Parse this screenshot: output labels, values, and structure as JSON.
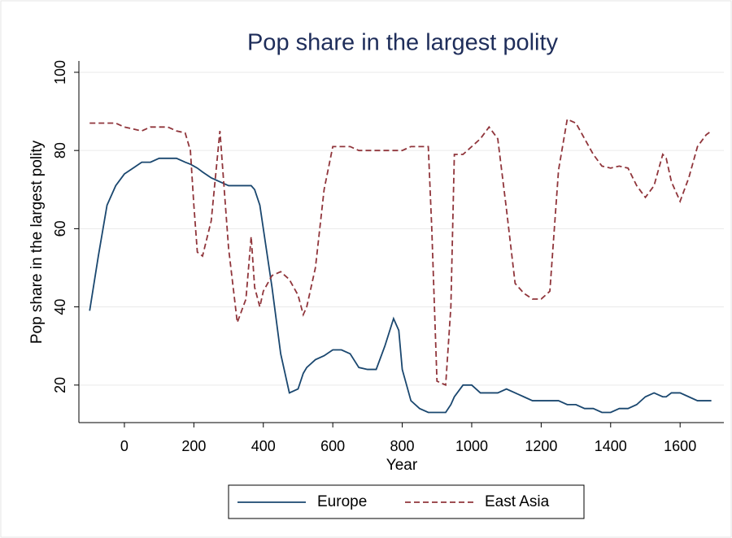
{
  "chart_data": {
    "type": "line",
    "title": "Pop share in the largest polity",
    "x_label": "Year",
    "y_label": "Pop share in the largest polity",
    "x": [
      -100,
      -75,
      -50,
      -25,
      0,
      25,
      50,
      75,
      100,
      125,
      150,
      175,
      190,
      200,
      210,
      225,
      250,
      275,
      300,
      325,
      350,
      365,
      375,
      390,
      400,
      425,
      450,
      475,
      500,
      515,
      525,
      550,
      575,
      600,
      625,
      650,
      675,
      700,
      725,
      750,
      775,
      790,
      800,
      825,
      850,
      875,
      885,
      900,
      925,
      940,
      950,
      975,
      1000,
      1025,
      1050,
      1075,
      1100,
      1125,
      1150,
      1175,
      1200,
      1225,
      1250,
      1275,
      1300,
      1325,
      1350,
      1375,
      1400,
      1425,
      1450,
      1475,
      1500,
      1525,
      1550,
      1560,
      1575,
      1600,
      1625,
      1650,
      1675,
      1690
    ],
    "series": [
      {
        "name": "Europe",
        "color": "#1a476f",
        "dash": "solid",
        "values": [
          39,
          53,
          66,
          71,
          74,
          75.5,
          77,
          77,
          78,
          78,
          78,
          77,
          76.5,
          76,
          75.5,
          74.5,
          73,
          72,
          71,
          71,
          71,
          71,
          70,
          66,
          60,
          45,
          28,
          18,
          19,
          23,
          24.5,
          26.5,
          27.5,
          29,
          29,
          28,
          24.5,
          24,
          24,
          30,
          37,
          34,
          24,
          16,
          14,
          13,
          13,
          13,
          13,
          15,
          17,
          20,
          20,
          18,
          18,
          18,
          19,
          18,
          17,
          16,
          16,
          16,
          16,
          15,
          15,
          14,
          14,
          13,
          13,
          14,
          14,
          15,
          17,
          18,
          17,
          17,
          18,
          18,
          17,
          16,
          16,
          16
        ]
      },
      {
        "name": "East Asia",
        "color": "#90353b",
        "dash": "dashed",
        "values": [
          87,
          87,
          87,
          87,
          86,
          85.5,
          85,
          86,
          86,
          86,
          85,
          84.5,
          80,
          66,
          54,
          53,
          62,
          85,
          55,
          36,
          42,
          58,
          45,
          40,
          44,
          48,
          49,
          47,
          43,
          38,
          40,
          50,
          70,
          81,
          81,
          81,
          80,
          80,
          80,
          80,
          80,
          80,
          80,
          81,
          81,
          81,
          60,
          21,
          20,
          40,
          79,
          79,
          81,
          83,
          86,
          83,
          65,
          46,
          43.5,
          42,
          42,
          44,
          75,
          88,
          87,
          83,
          79,
          76,
          75.5,
          76,
          75.5,
          71,
          68,
          71,
          79,
          78,
          72,
          67,
          73,
          81,
          84,
          85
        ]
      }
    ],
    "xlim": [
      -131,
      1726
    ],
    "ylim": [
      10.4,
      102.9
    ],
    "xticks": [
      0,
      200,
      400,
      600,
      800,
      1000,
      1200,
      1400,
      1600
    ],
    "yticks": [
      20,
      40,
      60,
      80,
      100
    ],
    "grid": true,
    "legend_position": "bottom"
  }
}
